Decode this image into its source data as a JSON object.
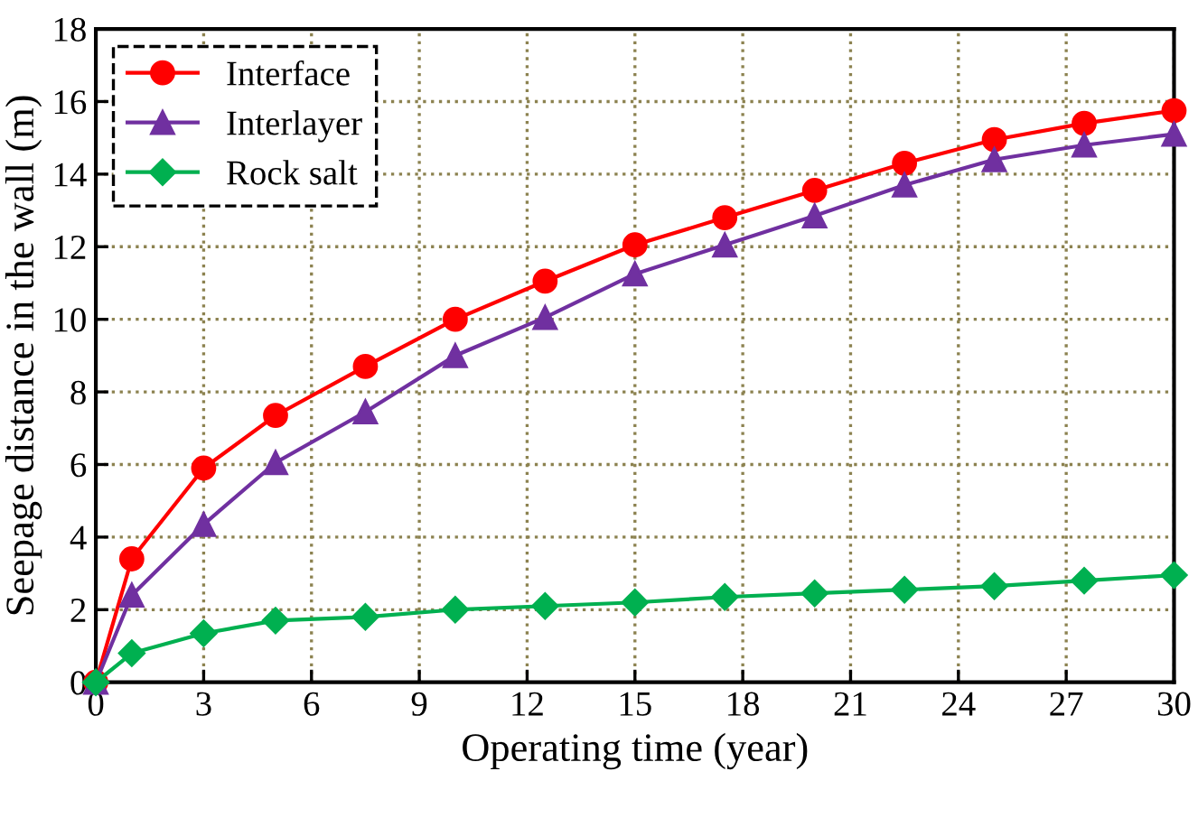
{
  "chart_data": {
    "type": "line",
    "xlabel": "Operating time (year)",
    "ylabel": "Seepage distance in the wall (m)",
    "x": [
      0,
      1,
      3,
      5,
      7.5,
      10,
      12.5,
      15,
      17.5,
      20,
      22.5,
      25,
      27.5,
      30
    ],
    "series": [
      {
        "name": "Interface",
        "color": "#ff0000",
        "marker": "circle",
        "values": [
          0,
          3.4,
          5.9,
          7.35,
          8.7,
          10.0,
          11.05,
          12.05,
          12.8,
          13.55,
          14.3,
          14.95,
          15.4,
          15.75
        ]
      },
      {
        "name": "Interlayer",
        "color": "#7030a0",
        "marker": "triangle",
        "values": [
          0,
          2.4,
          4.35,
          6.05,
          7.45,
          9.0,
          10.05,
          11.25,
          12.05,
          12.85,
          13.7,
          14.4,
          14.8,
          15.1
        ]
      },
      {
        "name": "Rock salt",
        "color": "#00b050",
        "marker": "diamond",
        "values": [
          0,
          0.8,
          1.35,
          1.7,
          1.8,
          2.0,
          2.1,
          2.2,
          2.35,
          2.45,
          2.55,
          2.65,
          2.8,
          2.95
        ]
      }
    ],
    "xlim": [
      0,
      30
    ],
    "xticks": [
      0,
      3,
      6,
      9,
      12,
      15,
      18,
      21,
      24,
      27,
      30
    ],
    "ylim": [
      0,
      18
    ],
    "yticks": [
      0,
      2,
      4,
      6,
      8,
      10,
      12,
      14,
      16,
      18
    ],
    "grid": true,
    "legend": "top left",
    "line_style": "solid"
  }
}
